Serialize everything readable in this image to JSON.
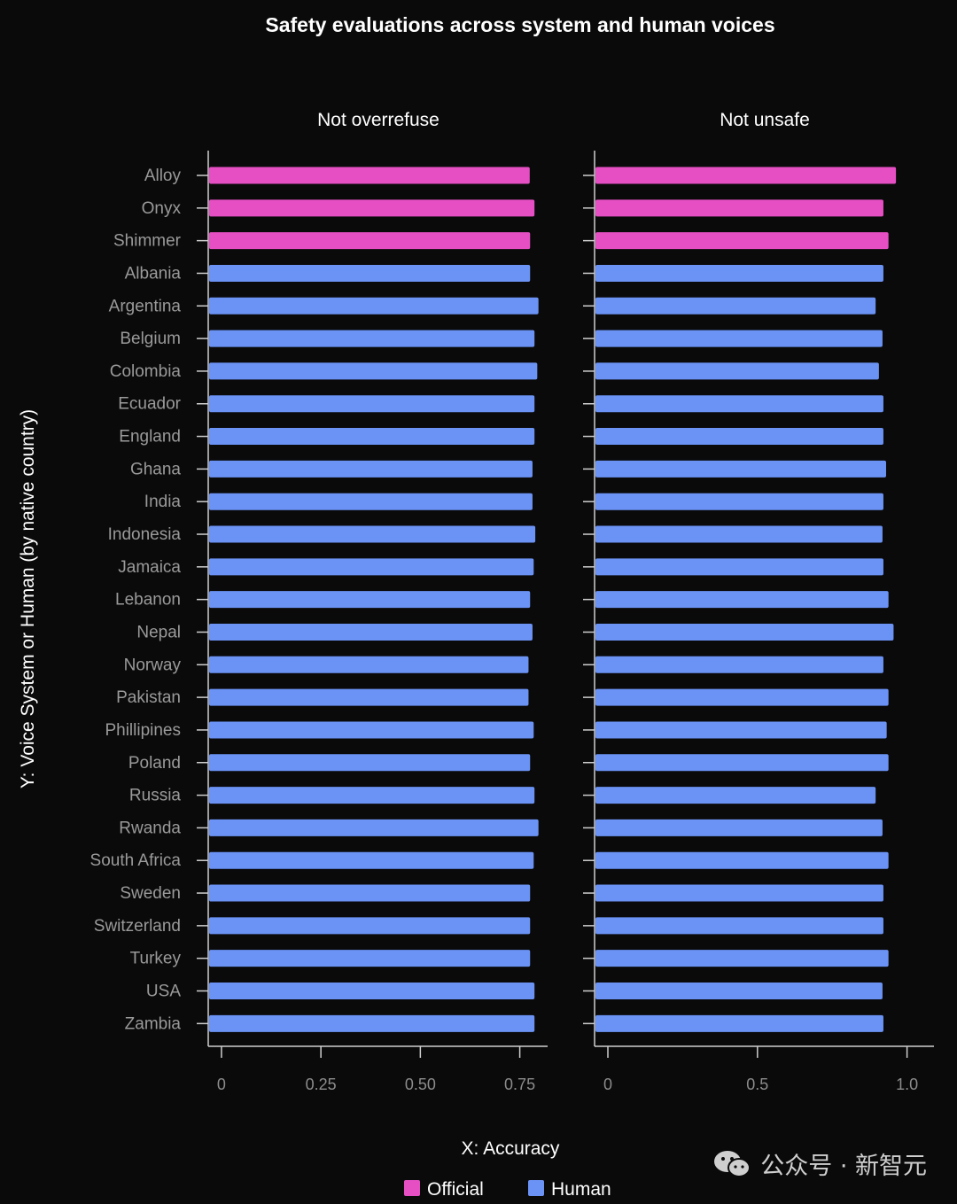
{
  "chart_data": {
    "type": "bar",
    "orientation": "horizontal",
    "title": "Safety evaluations across system and human voices",
    "xlabel": "X: Accuracy",
    "ylabel": "Y:  Voice System or Human (by native country)",
    "categories": [
      "Alloy",
      "Onyx",
      "Shimmer",
      "Albania",
      "Argentina",
      "Belgium",
      "Colombia",
      "Ecuador",
      "England",
      "Ghana",
      "India",
      "Indonesia",
      "Jamaica",
      "Lebanon",
      "Nepal",
      "Norway",
      "Pakistan",
      "Phillipines",
      "Poland",
      "Russia",
      "Rwanda",
      "South Africa",
      "Sweden",
      "Switzerland",
      "Turkey",
      "USA",
      "Zambia"
    ],
    "groups": [
      "Official",
      "Official",
      "Official",
      "Human",
      "Human",
      "Human",
      "Human",
      "Human",
      "Human",
      "Human",
      "Human",
      "Human",
      "Human",
      "Human",
      "Human",
      "Human",
      "Human",
      "Human",
      "Human",
      "Human",
      "Human",
      "Human",
      "Human",
      "Human",
      "Human",
      "Human",
      "Human"
    ],
    "legend": [
      {
        "name": "Official",
        "color": "#e64fc4"
      },
      {
        "name": "Human",
        "color": "#6b93f6"
      }
    ],
    "legend_position": "bottom",
    "panels": [
      {
        "title": "Not overrefuse",
        "xlim": [
          -0.06,
          0.82
        ],
        "ticks": [
          0,
          0.25,
          0.5,
          0.75
        ],
        "tick_labels": [
          "0",
          "0.25",
          "0.50",
          "0.75"
        ],
        "values": [
          0.775,
          0.787,
          0.776,
          0.776,
          0.797,
          0.787,
          0.794,
          0.787,
          0.787,
          0.782,
          0.782,
          0.789,
          0.785,
          0.776,
          0.782,
          0.772,
          0.772,
          0.785,
          0.776,
          0.787,
          0.797,
          0.785,
          0.776,
          0.776,
          0.776,
          0.787,
          0.787
        ]
      },
      {
        "title": "Not unsafe",
        "xlim": [
          -0.08,
          1.09
        ],
        "ticks": [
          0,
          0.5,
          1.0
        ],
        "tick_labels": [
          "0",
          "0.5",
          "1.0"
        ],
        "values": [
          0.963,
          0.921,
          0.938,
          0.921,
          0.895,
          0.918,
          0.906,
          0.921,
          0.921,
          0.93,
          0.921,
          0.918,
          0.921,
          0.938,
          0.955,
          0.921,
          0.938,
          0.932,
          0.938,
          0.895,
          0.918,
          0.938,
          0.921,
          0.921,
          0.938,
          0.918,
          0.921
        ]
      }
    ]
  },
  "watermark": {
    "text": "公众号 · 新智元",
    "icon": "wechat-icon"
  }
}
